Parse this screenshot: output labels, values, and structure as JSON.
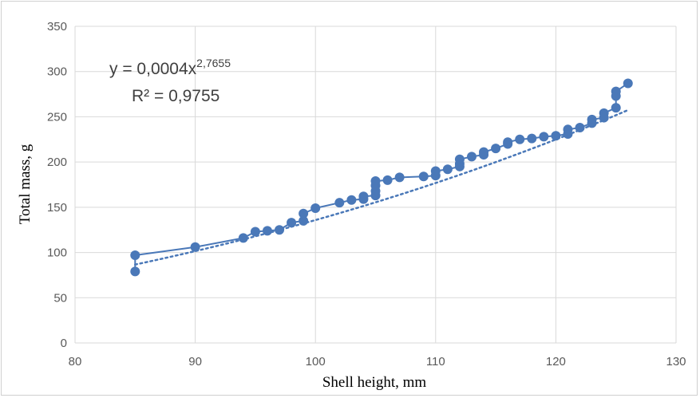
{
  "chart_data": {
    "type": "scatter",
    "xlabel": "Shell height, mm",
    "ylabel": "Total mass, g",
    "xlim": [
      80,
      130
    ],
    "ylim": [
      0,
      350
    ],
    "xticks": [
      80,
      90,
      100,
      110,
      120,
      130
    ],
    "yticks": [
      0,
      50,
      100,
      150,
      200,
      250,
      300,
      350
    ],
    "grid": true,
    "legend": "none",
    "colors": {
      "series": "#4a78b8",
      "grid": "#d9d9d9",
      "tick_text": "#595959",
      "equation_text": "#404040"
    },
    "trendline": {
      "type": "power",
      "coefficient": 0.0004,
      "exponent": 2.7655,
      "style": "dotted",
      "x_range": [
        85,
        126
      ],
      "equation_prefix": "y = 0,0004x",
      "equation_exponent": "2,7655",
      "r_squared_text": "R² = 0,9755"
    },
    "series": [
      {
        "points": [
          [
            85,
            79
          ],
          [
            85,
            97
          ],
          [
            90,
            106
          ],
          [
            94,
            116
          ],
          [
            95,
            123
          ],
          [
            96,
            124
          ],
          [
            97,
            125
          ],
          [
            98,
            133
          ],
          [
            99,
            135
          ],
          [
            99,
            143
          ],
          [
            100,
            149
          ],
          [
            102,
            155
          ],
          [
            103,
            158
          ],
          [
            104,
            159
          ],
          [
            104,
            162
          ],
          [
            105,
            163
          ],
          [
            105,
            168
          ],
          [
            105,
            174
          ],
          [
            105,
            179
          ],
          [
            106,
            180
          ],
          [
            107,
            183
          ],
          [
            109,
            184
          ],
          [
            110,
            185
          ],
          [
            110,
            190
          ],
          [
            111,
            192
          ],
          [
            112,
            195
          ],
          [
            112,
            198
          ],
          [
            112,
            203
          ],
          [
            113,
            206
          ],
          [
            114,
            208
          ],
          [
            114,
            211
          ],
          [
            115,
            215
          ],
          [
            116,
            220
          ],
          [
            116,
            222
          ],
          [
            117,
            225
          ],
          [
            118,
            226
          ],
          [
            119,
            228
          ],
          [
            120,
            229
          ],
          [
            121,
            231
          ],
          [
            121,
            236
          ],
          [
            122,
            238
          ],
          [
            123,
            243
          ],
          [
            123,
            247
          ],
          [
            124,
            249
          ],
          [
            124,
            254
          ],
          [
            125,
            260
          ],
          [
            125,
            273
          ],
          [
            125,
            278
          ],
          [
            126,
            287
          ]
        ]
      }
    ]
  }
}
